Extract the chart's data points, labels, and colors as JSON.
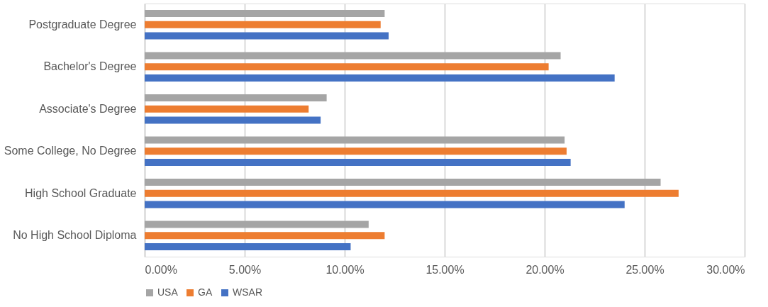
{
  "chart_data": {
    "type": "bar",
    "orientation": "horizontal",
    "categories": [
      "Postgraduate Degree",
      "Bachelor's Degree",
      "Associate's Degree",
      "Some College, No Degree",
      "High School Graduate",
      "No High School Diploma"
    ],
    "series": [
      {
        "name": "USA",
        "color": "#a5a5a5",
        "values": [
          12.0,
          20.8,
          9.1,
          21.0,
          25.8,
          11.2
        ]
      },
      {
        "name": "GA",
        "color": "#ed7d31",
        "values": [
          11.8,
          20.2,
          8.2,
          21.1,
          26.7,
          12.0
        ]
      },
      {
        "name": "WSAR",
        "color": "#4472c4",
        "values": [
          12.2,
          23.5,
          8.8,
          21.3,
          24.0,
          10.3
        ]
      }
    ],
    "xlim": [
      0,
      30
    ],
    "xticks": [
      {
        "value": 0,
        "label": "0.00%"
      },
      {
        "value": 5,
        "label": "5.00%"
      },
      {
        "value": 10,
        "label": "10.00%"
      },
      {
        "value": 15,
        "label": "15.00%"
      },
      {
        "value": 20,
        "label": "20.00%"
      },
      {
        "value": 25,
        "label": "25.00%"
      },
      {
        "value": 30,
        "label": "30.00%"
      }
    ],
    "grid": "x",
    "legend": "bottom"
  }
}
